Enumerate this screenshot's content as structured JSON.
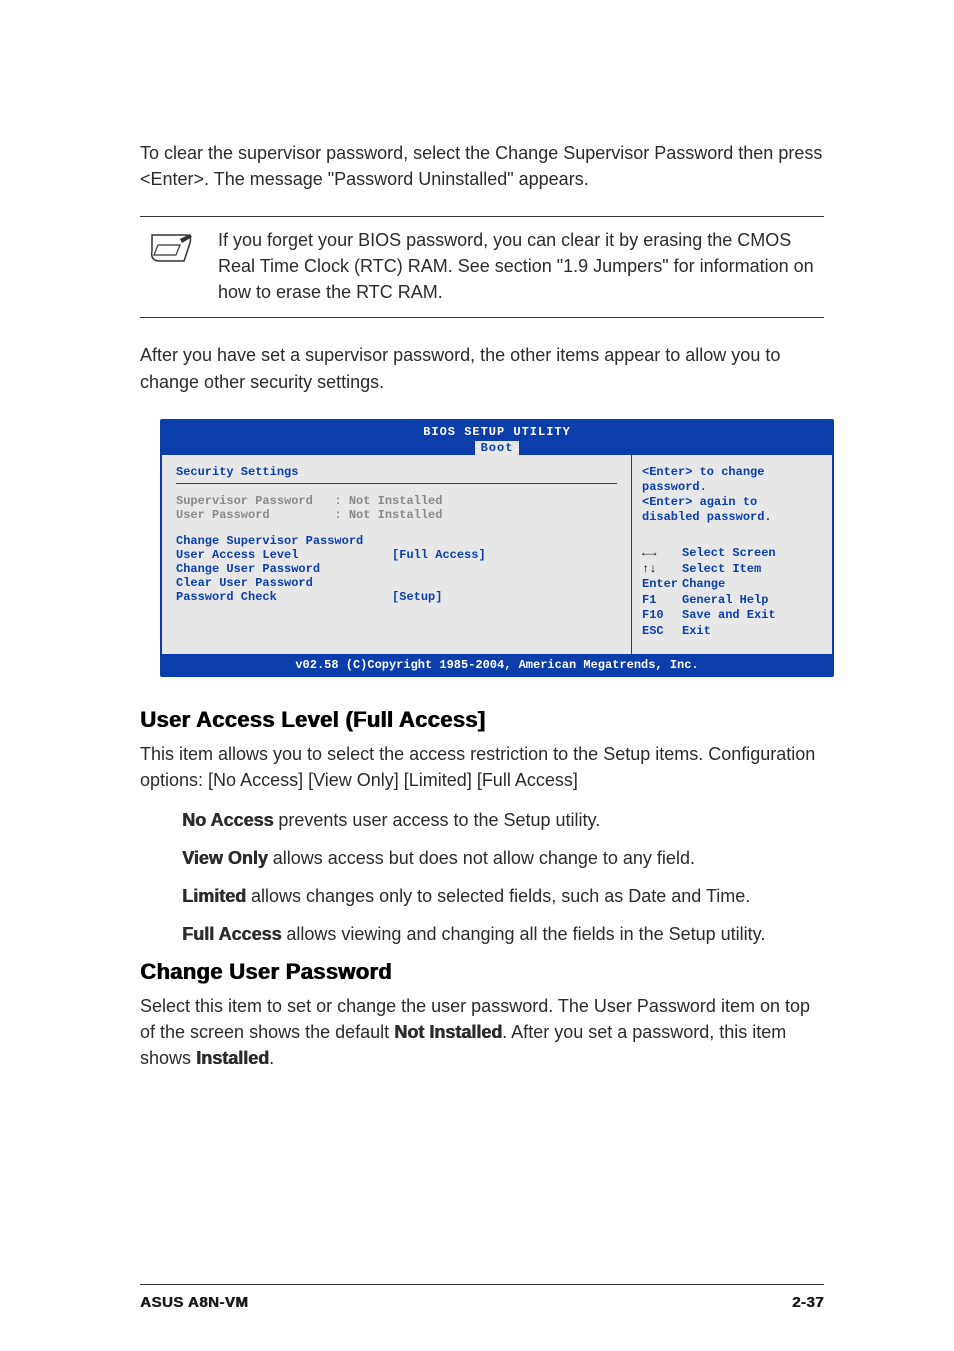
{
  "intro": "To clear the supervisor password, select the Change Supervisor Password then press <Enter>. The message \"Password Uninstalled\" appears.",
  "note": "If you forget your BIOS password, you can clear it by erasing the CMOS Real Time Clock (RTC) RAM. See section \"1.9  Jumpers\" for information on how to erase the RTC RAM.",
  "after_note": "After you have set a supervisor password, the other items appear to allow you to change other security settings.",
  "bios": {
    "title": "BIOS SETUP UTILITY",
    "tab": "Boot",
    "section_title": "Security Settings",
    "status_rows": [
      {
        "label": "Supervisor Password",
        "value": ": Not Installed"
      },
      {
        "label": "User Password",
        "value": ": Not Installed"
      }
    ],
    "menu_rows": [
      {
        "label": "Change Supervisor Password",
        "value": ""
      },
      {
        "label": "User Access Level",
        "value": "[Full Access]"
      },
      {
        "label": "Change User Password",
        "value": ""
      },
      {
        "label": "Clear User Password",
        "value": ""
      },
      {
        "label": "Password Check",
        "value": "[Setup]"
      }
    ],
    "help_top": "<Enter> to change password.\n<Enter> again to disabled password.",
    "help_keys": [
      {
        "sym": "arrows-lr",
        "label": "Select Screen"
      },
      {
        "sym": "arrows-ud",
        "label": "Select Item"
      },
      {
        "sym": "Enter",
        "label": "Change"
      },
      {
        "sym": "F1",
        "label": "General Help"
      },
      {
        "sym": "F10",
        "label": "Save and Exit"
      },
      {
        "sym": "ESC",
        "label": "Exit"
      }
    ],
    "footer": "v02.58 (C)Copyright 1985-2004, American Megatrends, Inc."
  },
  "sections": {
    "ual": {
      "heading": "User Access Level (Full Access]",
      "lead": "This item allows you to select the access restriction to the Setup items. Configuration options: [No Access] [View Only] [Limited] [Full Access]",
      "opts": [
        {
          "b": "No Access",
          "t": " prevents user access to the Setup utility."
        },
        {
          "b": "View Only",
          "t": " allows access but does not allow change to any field."
        },
        {
          "b": "Limited",
          "t": " allows changes only to selected fields, such as Date and Time."
        },
        {
          "b": "Full Access",
          "t": " allows viewing and changing all the fields in the Setup utility."
        }
      ]
    },
    "cup": {
      "heading": "Change User Password",
      "text_parts": [
        "Select this item to set or change the user password. The User Password item on top of the screen shows the default ",
        "Not Installed",
        ". After you set a password, this item shows ",
        "Installed",
        "."
      ]
    }
  },
  "page_footer": {
    "left": "ASUS A8N-VM",
    "right": "2-37"
  },
  "colors": {
    "bios_blue": "#0b3eaa",
    "bios_grey": "#8a8a8a",
    "bios_bg": "#e7e7e7"
  }
}
